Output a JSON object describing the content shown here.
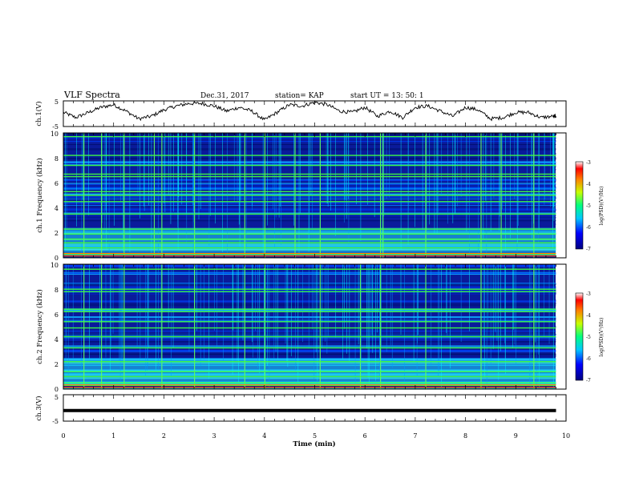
{
  "header": {
    "title": "VLF Spectra",
    "date": "Dec.31, 2017",
    "station": "station= KAP",
    "start": "start UT =  13: 50: 1"
  },
  "chart_data": [
    {
      "type": "line",
      "name": "ch1-waveform",
      "ylabel": "ch.1(V)",
      "ylim": [
        -5,
        5
      ],
      "yticks": [
        "5",
        "-5"
      ],
      "x": [
        0,
        0.25,
        0.5,
        0.75,
        1.0,
        1.25,
        1.5,
        1.75,
        2.0,
        2.25,
        2.5,
        2.75,
        3.0,
        3.25,
        3.5,
        3.75,
        4.0,
        4.25,
        4.5,
        4.75,
        5.0,
        5.25,
        5.5,
        5.75,
        6.0,
        6.25,
        6.5,
        6.75,
        7.0,
        7.25,
        7.5,
        7.75,
        8.0,
        8.25,
        8.5,
        8.75,
        9.0,
        9.25,
        9.5,
        9.75,
        9.8
      ],
      "y": [
        0.5,
        -1.5,
        0.5,
        2.5,
        3.5,
        1.0,
        -2.0,
        -1.0,
        1.5,
        3.0,
        4.0,
        4.0,
        3.0,
        1.0,
        2.5,
        1.0,
        -2.5,
        0.5,
        3.5,
        3.0,
        4.5,
        3.5,
        1.0,
        0.5,
        2.5,
        -1.0,
        1.0,
        -1.5,
        2.5,
        3.0,
        1.0,
        -1.0,
        2.5,
        1.5,
        -2.0,
        -1.5,
        0.5,
        0.5,
        -1.5,
        -1.0,
        -1.0
      ]
    },
    {
      "type": "heatmap",
      "name": "ch1-spectrogram",
      "ylabel": "ch.1 Frequency (kHz)",
      "xlim": [
        0,
        10
      ],
      "ylim": [
        0,
        10
      ],
      "yticks": [
        "0",
        "2",
        "4",
        "6",
        "8",
        "10"
      ],
      "colorbar": {
        "label": "log(PSD)(V²/Hz)",
        "ticks": [
          "-3",
          "-4",
          "-5",
          "-6",
          "-7"
        ],
        "range": [
          -7,
          -3
        ]
      },
      "line_frequencies_khz": [
        0.3,
        0.8,
        1.2,
        1.5,
        1.9,
        2.3,
        3.5,
        4.5,
        5.0,
        5.3,
        6.5,
        6.7,
        7.4,
        8.2,
        9.7
      ],
      "impulse_times_min": [
        0.4,
        0.75,
        1.2,
        1.8,
        1.95,
        2.6,
        3.6,
        4.0,
        4.6,
        5.1,
        6.3,
        6.35,
        7.2,
        8.3,
        8.7,
        9.35,
        9.8
      ]
    },
    {
      "type": "heatmap",
      "name": "ch2-spectrogram",
      "ylabel": "ch.2 Frequency (kHz)",
      "xlim": [
        0,
        10
      ],
      "ylim": [
        0,
        10
      ],
      "yticks": [
        "0",
        "2",
        "4",
        "6",
        "8",
        "10"
      ],
      "colorbar": {
        "label": "log(PSD)(V²/Hz)",
        "ticks": [
          "-3",
          "-4",
          "-5",
          "-6",
          "-7"
        ],
        "range": [
          -7,
          -3
        ]
      },
      "line_frequencies_khz": [
        0.3,
        0.5,
        1.0,
        1.4,
        2.2,
        3.3,
        4.2,
        4.9,
        5.4,
        6.2,
        6.4,
        7.8,
        8.0,
        9.6
      ],
      "impulse_times_min": [
        0.4,
        0.75,
        1.2,
        1.95,
        2.6,
        3.6,
        4.0,
        5.1,
        5.9,
        6.3,
        7.2,
        8.3,
        9.35,
        9.8
      ]
    },
    {
      "type": "line",
      "name": "ch3-waveform",
      "ylabel": "ch.3(V)",
      "ylim": [
        -5,
        5
      ],
      "yticks": [
        "5",
        "-5"
      ],
      "x": [
        0,
        9.8
      ],
      "y": [
        -1,
        -1
      ]
    }
  ],
  "xaxis": {
    "label": "Time (min)",
    "ticks": [
      "0",
      "1",
      "2",
      "3",
      "4",
      "5",
      "6",
      "7",
      "8",
      "9",
      "10"
    ]
  }
}
